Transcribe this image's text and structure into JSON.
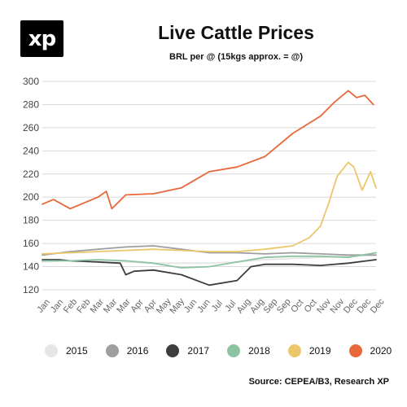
{
  "logo": {
    "text": "xp"
  },
  "header": {
    "title": "Live Cattle Prices",
    "subtitle": "BRL per @ (15kgs approx. = @)"
  },
  "source": "Source: CEPEA/B3, Research XP",
  "colors": {
    "2015": "#e6e6e6",
    "2016": "#9e9e9e",
    "2017": "#3d3d3d",
    "2018": "#8cc4a3",
    "2019": "#ecc76a",
    "2020": "#e8683a"
  },
  "chart_data": {
    "type": "line",
    "title": "Live Cattle Prices",
    "subtitle": "BRL per @ (15kgs approx. = @)",
    "ylim": [
      120,
      300
    ],
    "y_ticks": [
      120,
      140,
      160,
      180,
      200,
      220,
      240,
      260,
      280,
      300
    ],
    "y_tick_labels": [
      "120",
      "140",
      "160",
      "180",
      "200",
      "220",
      "240",
      "260",
      "280",
      "300"
    ],
    "x_tick_labels": [
      "Jan",
      "Jan",
      "Feb",
      "Feb",
      "Mar",
      "Mar",
      "Mar",
      "Apr",
      "Apr",
      "May",
      "May",
      "Jun",
      "Jun",
      "Jul",
      "Jul",
      "Aug",
      "Aug",
      "Sep",
      "Sep",
      "Oct",
      "Oct",
      "Nov",
      "Nov",
      "Dec",
      "Dec",
      "Dec"
    ],
    "x_domain": [
      0,
      12
    ],
    "grid": "horizontal",
    "legend_position": "bottom",
    "series": [
      {
        "name": "2015",
        "x": [
          0,
          1,
          2,
          3,
          4,
          5,
          6,
          7,
          8,
          9,
          10,
          11,
          12
        ],
        "values": [
          144,
          145,
          145,
          144,
          143,
          143,
          143,
          144,
          146,
          147,
          148,
          149,
          150
        ]
      },
      {
        "name": "2016",
        "x": [
          0,
          1,
          2,
          3,
          4,
          5,
          6,
          7,
          8,
          9,
          10,
          11,
          12
        ],
        "values": [
          150,
          153,
          155,
          157,
          158,
          155,
          152,
          152,
          151,
          152,
          151,
          150,
          150
        ]
      },
      {
        "name": "2017",
        "x": [
          0,
          0.6,
          1,
          2,
          2.8,
          3,
          3.3,
          4,
          5,
          6,
          7,
          7.5,
          8,
          9,
          10,
          11,
          12
        ],
        "values": [
          146,
          146,
          145,
          144,
          143,
          133,
          136,
          137,
          133,
          124,
          128,
          140,
          142,
          142,
          141,
          143,
          146
        ]
      },
      {
        "name": "2018",
        "x": [
          0,
          1,
          2,
          3,
          4,
          5,
          6,
          7,
          8,
          9,
          10,
          11,
          12
        ],
        "values": [
          145,
          145,
          146,
          145,
          143,
          139,
          140,
          144,
          148,
          149,
          149,
          148,
          152
        ]
      },
      {
        "name": "2019",
        "x": [
          0,
          1,
          2,
          3,
          4,
          5,
          6,
          7,
          8,
          9,
          9.6,
          10,
          10.3,
          10.6,
          11,
          11.2,
          11.5,
          11.8,
          12
        ],
        "values": [
          151,
          152,
          153,
          154,
          155,
          154,
          153,
          153,
          155,
          158,
          165,
          175,
          195,
          218,
          230,
          226,
          206,
          222,
          208
        ]
      },
      {
        "name": "2020",
        "x": [
          0,
          0.4,
          1,
          2,
          2.3,
          2.5,
          3,
          4,
          5,
          6,
          7,
          8,
          9,
          10,
          10.5,
          11,
          11.3,
          11.6,
          11.9
        ],
        "values": [
          194,
          198,
          190,
          200,
          205,
          190,
          202,
          203,
          208,
          222,
          226,
          235,
          255,
          270,
          282,
          292,
          286,
          288,
          280
        ]
      }
    ]
  }
}
